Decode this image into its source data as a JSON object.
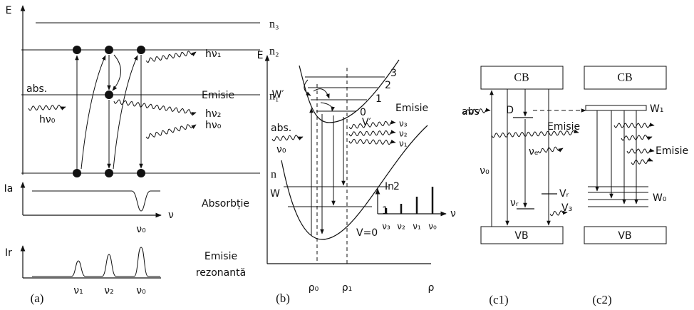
{
  "panel_a": {
    "axis_e": "E",
    "levels": [
      "n₃",
      "n₂",
      "n₁",
      "n"
    ],
    "abs": "abs.",
    "abs_photon": "hν₀",
    "emitted": [
      "hν₁",
      "hν₂",
      "hν₀"
    ],
    "emission": "Emisie",
    "absorption_axis": "Ia",
    "absorption": "Absorbție",
    "freq_axis": "ν",
    "absorption_peak": "ν₀",
    "emission_axis": "Ir",
    "resonant_emission": [
      "Emisie",
      "rezonantă"
    ],
    "peaks": [
      "ν₁",
      "ν₂",
      "ν₀"
    ],
    "caption": "(a)"
  },
  "panel_b": {
    "axis_e": "E",
    "upper_curve": "W′",
    "upper_levels": [
      "3",
      "2",
      "1",
      "0"
    ],
    "upper_label": "V′",
    "emission": "Emisie",
    "emitted": [
      "ν₃",
      "ν₂",
      "ν₁"
    ],
    "abs": "abs.",
    "abs_photon": "ν₀",
    "lower_curve": "W",
    "lower_levels": [
      "2",
      "1",
      "V=0"
    ],
    "spectrum_axis": "In",
    "spectrum_lines": [
      "ν₃",
      "ν₂",
      "ν₁",
      "ν₀"
    ],
    "spectrum_freq": "ν",
    "x_marks": [
      "ρ₀",
      "ρ₁"
    ],
    "axis_rho": "ρ",
    "caption": "(b)"
  },
  "panel_c1": {
    "cb": "CB",
    "abs": "abs",
    "donor": "D",
    "emission": "Emisie",
    "labels": [
      "ν₀",
      "νₑ",
      "Vᵣ",
      "νᵣ",
      "V₃"
    ],
    "vb": "VB",
    "caption": "(c1)"
  },
  "panel_c2": {
    "cb": "CB",
    "w1": "W₁",
    "emission": "Emisie",
    "w0": "W₀",
    "vb": "VB",
    "caption": "(c2)"
  }
}
